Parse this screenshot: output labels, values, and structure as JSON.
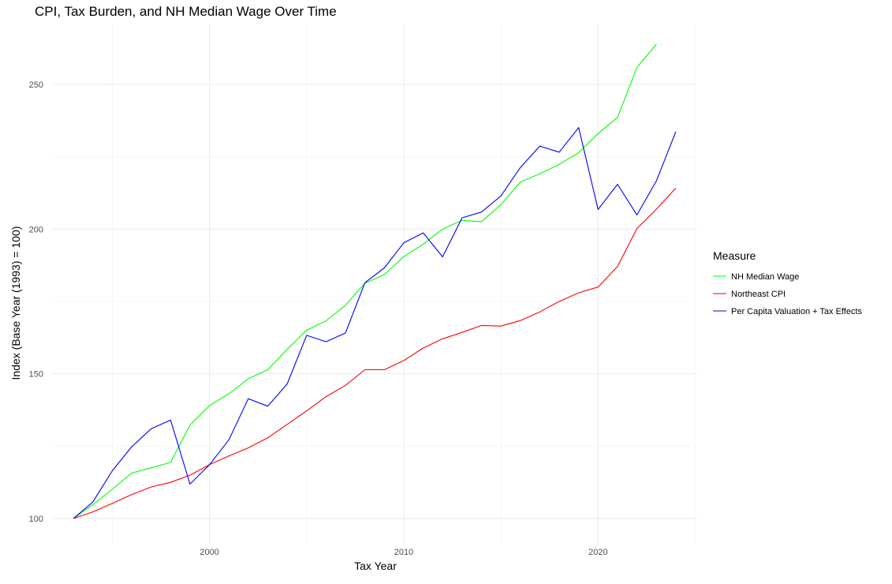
{
  "chart_data": {
    "type": "line",
    "title": "CPI, Tax Burden, and NH Median Wage Over Time",
    "xlabel": "Tax Year",
    "ylabel": "Index (Base Year (1993) = 100)",
    "xlim": [
      1991.9,
      2025.1
    ],
    "ylim": [
      91,
      271
    ],
    "x_ticks": [
      2000,
      2010,
      2020
    ],
    "y_ticks": [
      100,
      150,
      200,
      250
    ],
    "grid": true,
    "legend": {
      "title": "Measure",
      "position": "right"
    },
    "series": [
      {
        "name": "NH Median Wage",
        "color": "#00ff00",
        "x": [
          1993,
          1994,
          1995,
          1996,
          1997,
          1998,
          1999,
          2000,
          2001,
          2002,
          2003,
          2004,
          2005,
          2006,
          2007,
          2008,
          2009,
          2010,
          2011,
          2012,
          2013,
          2014,
          2015,
          2016,
          2017,
          2018,
          2019,
          2020,
          2021,
          2022,
          2023
        ],
        "values": [
          100,
          104.8,
          110.1,
          115.7,
          117.5,
          119.4,
          132.3,
          139,
          143.1,
          148.3,
          151.4,
          158.5,
          165.1,
          168.3,
          173.7,
          181.3,
          184.3,
          190.5,
          194.8,
          200,
          203,
          202.6,
          208.5,
          216.3,
          219.1,
          222.4,
          226.4,
          233,
          238.6,
          255.9,
          263.9
        ]
      },
      {
        "name": "Northeast CPI",
        "color": "#ff0000",
        "x": [
          1993,
          1994,
          1995,
          1996,
          1997,
          1998,
          1999,
          2000,
          2001,
          2002,
          2003,
          2004,
          2005,
          2006,
          2007,
          2008,
          2009,
          2010,
          2011,
          2012,
          2013,
          2014,
          2015,
          2016,
          2017,
          2018,
          2019,
          2020,
          2021,
          2022,
          2023,
          2024
        ],
        "values": [
          100,
          102.3,
          105.2,
          108.3,
          110.9,
          112.5,
          115,
          118.6,
          121.6,
          124.4,
          127.9,
          132.5,
          137.2,
          142.1,
          146,
          151.4,
          151.4,
          154.6,
          158.9,
          162.1,
          164.3,
          166.7,
          166.5,
          168.4,
          171.4,
          175,
          178,
          180,
          187.1,
          200.2,
          206.9,
          214.2
        ]
      },
      {
        "name": "Per Capita Valuation + Tax Effects",
        "color": "#0000ff",
        "x": [
          1993,
          1994,
          1995,
          1996,
          1997,
          1998,
          1999,
          2000,
          2001,
          2002,
          2003,
          2004,
          2005,
          2006,
          2007,
          2008,
          2009,
          2010,
          2011,
          2012,
          2013,
          2014,
          2015,
          2016,
          2017,
          2018,
          2019,
          2020,
          2021,
          2022,
          2023,
          2024
        ],
        "values": [
          100,
          105.7,
          116.5,
          124.8,
          131,
          134,
          111.9,
          118.6,
          127.2,
          141.4,
          138.8,
          146.5,
          163.3,
          161.1,
          164.1,
          181.5,
          186.6,
          195.3,
          198.7,
          190.4,
          203.9,
          205.9,
          211.5,
          221.3,
          228.7,
          226.6,
          235.1,
          206.8,
          215.5,
          204.9,
          216.7,
          233.7
        ]
      }
    ]
  }
}
